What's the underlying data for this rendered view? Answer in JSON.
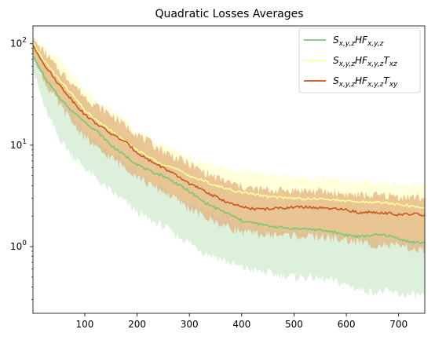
{
  "chart_data": {
    "type": "line",
    "title": "Quadratic Losses Averages",
    "xlabel": "",
    "ylabel": "",
    "xlim": [
      1,
      750
    ],
    "ylim": [
      0.22,
      150
    ],
    "yscale": "log",
    "grid": false,
    "legend_position": "top-right",
    "x_ticks": [
      {
        "value": 100,
        "label": "100"
      },
      {
        "value": 200,
        "label": "200"
      },
      {
        "value": 300,
        "label": "300"
      },
      {
        "value": 400,
        "label": "400"
      },
      {
        "value": 500,
        "label": "500"
      },
      {
        "value": 600,
        "label": "600"
      },
      {
        "value": 700,
        "label": "700"
      }
    ],
    "y_ticks": [
      {
        "value": 1,
        "base": "10",
        "exp": "0"
      },
      {
        "value": 10,
        "base": "10",
        "exp": "1"
      },
      {
        "value": 100,
        "base": "10",
        "exp": "2"
      }
    ],
    "x": [
      1,
      25,
      50,
      75,
      100,
      125,
      150,
      175,
      200,
      225,
      250,
      275,
      300,
      325,
      350,
      375,
      400,
      425,
      450,
      475,
      500,
      525,
      550,
      575,
      600,
      625,
      650,
      675,
      700,
      725,
      750
    ],
    "series": [
      {
        "name_base": "S",
        "name_sub1": "x,y,z",
        "name_mid": "HF",
        "name_sub2": "x,y,z",
        "name_tail": "",
        "name_sub3": "",
        "color": "#77c777",
        "band_color": "#d8eed8",
        "values": [
          75,
          45,
          30,
          22,
          17,
          13.5,
          10,
          8,
          6.5,
          5.5,
          5,
          4.2,
          3.5,
          2.8,
          2.4,
          2.1,
          1.8,
          1.7,
          1.6,
          1.55,
          1.5,
          1.5,
          1.45,
          1.4,
          1.3,
          1.25,
          1.3,
          1.3,
          1.2,
          1.1,
          1.1
        ],
        "lower": [
          55,
          22,
          12,
          8,
          6,
          4.5,
          3.5,
          2.8,
          2.2,
          1.8,
          1.6,
          1.3,
          1.1,
          0.9,
          0.8,
          0.7,
          0.62,
          0.58,
          0.55,
          0.52,
          0.5,
          0.5,
          0.48,
          0.46,
          0.42,
          0.38,
          0.36,
          0.36,
          0.34,
          0.33,
          0.33
        ],
        "upper": [
          90,
          70,
          50,
          40,
          30,
          24,
          18,
          14,
          11,
          9,
          8,
          6.5,
          5.5,
          4.8,
          4.2,
          3.8,
          3.4,
          3.2,
          3.1,
          3,
          3,
          3,
          2.9,
          2.8,
          2.7,
          2.6,
          2.6,
          2.5,
          2.5,
          2.4,
          2.4
        ]
      },
      {
        "name_base": "S",
        "name_sub1": "x,y,z",
        "name_mid": "HF",
        "name_sub2": "x,y,z",
        "name_tail": "T",
        "name_sub3": "xz",
        "color": "#ffff99",
        "band_color": "#ffffcc",
        "values": [
          100,
          65,
          45,
          32,
          22,
          17,
          14,
          11,
          9,
          7.5,
          6.5,
          5.8,
          5,
          4.5,
          4,
          3.7,
          3.4,
          3.3,
          3.1,
          3.05,
          3,
          2.95,
          2.95,
          2.9,
          2.8,
          2.75,
          2.75,
          2.7,
          2.6,
          2.5,
          2.4
        ],
        "lower": [
          80,
          45,
          30,
          20,
          14,
          10.5,
          8.5,
          6.8,
          5.5,
          4.5,
          3.8,
          3.2,
          2.8,
          2.4,
          2.1,
          1.9,
          1.7,
          1.6,
          1.55,
          1.5,
          1.45,
          1.4,
          1.4,
          1.35,
          1.3,
          1.25,
          1.2,
          1.2,
          1.15,
          1.1,
          1.1
        ],
        "upper": [
          110,
          90,
          70,
          50,
          35,
          27,
          22,
          18,
          14,
          12,
          10,
          8.5,
          7.5,
          6.8,
          6.2,
          5.8,
          5.4,
          5.2,
          5,
          4.9,
          4.8,
          4.7,
          4.6,
          4.5,
          4.4,
          4.3,
          4.3,
          4.2,
          4.1,
          4,
          4
        ]
      },
      {
        "name_base": "S",
        "name_sub1": "x,y,z",
        "name_mid": "HF",
        "name_sub2": "x,y,z",
        "name_tail": "T",
        "name_sub3": "xy",
        "color": "#c65a1e",
        "band_color": "#e1a870",
        "values": [
          95,
          60,
          40,
          28,
          20,
          16,
          13,
          11,
          8.5,
          7,
          6,
          5,
          4.2,
          3.6,
          3.1,
          2.7,
          2.45,
          2.35,
          2.35,
          2.4,
          2.45,
          2.45,
          2.4,
          2.35,
          2.3,
          2.15,
          2.2,
          2.15,
          2.05,
          2.1,
          2.05
        ],
        "lower": [
          80,
          40,
          26,
          17,
          12,
          9,
          7.5,
          6.2,
          5,
          4,
          3.5,
          2.9,
          2.4,
          2,
          1.75,
          1.55,
          1.4,
          1.33,
          1.3,
          1.3,
          1.28,
          1.25,
          1.25,
          1.2,
          1.15,
          1.1,
          1.05,
          1.03,
          1,
          0.95,
          0.9
        ],
        "upper": [
          110,
          80,
          55,
          42,
          30,
          24,
          20,
          16,
          13,
          10.5,
          8.8,
          7.5,
          6.5,
          5.5,
          4.8,
          4.3,
          3.9,
          3.7,
          3.6,
          3.6,
          3.6,
          3.55,
          3.5,
          3.4,
          3.3,
          3.2,
          3.2,
          3.2,
          3.1,
          3.1,
          3
        ]
      }
    ]
  }
}
